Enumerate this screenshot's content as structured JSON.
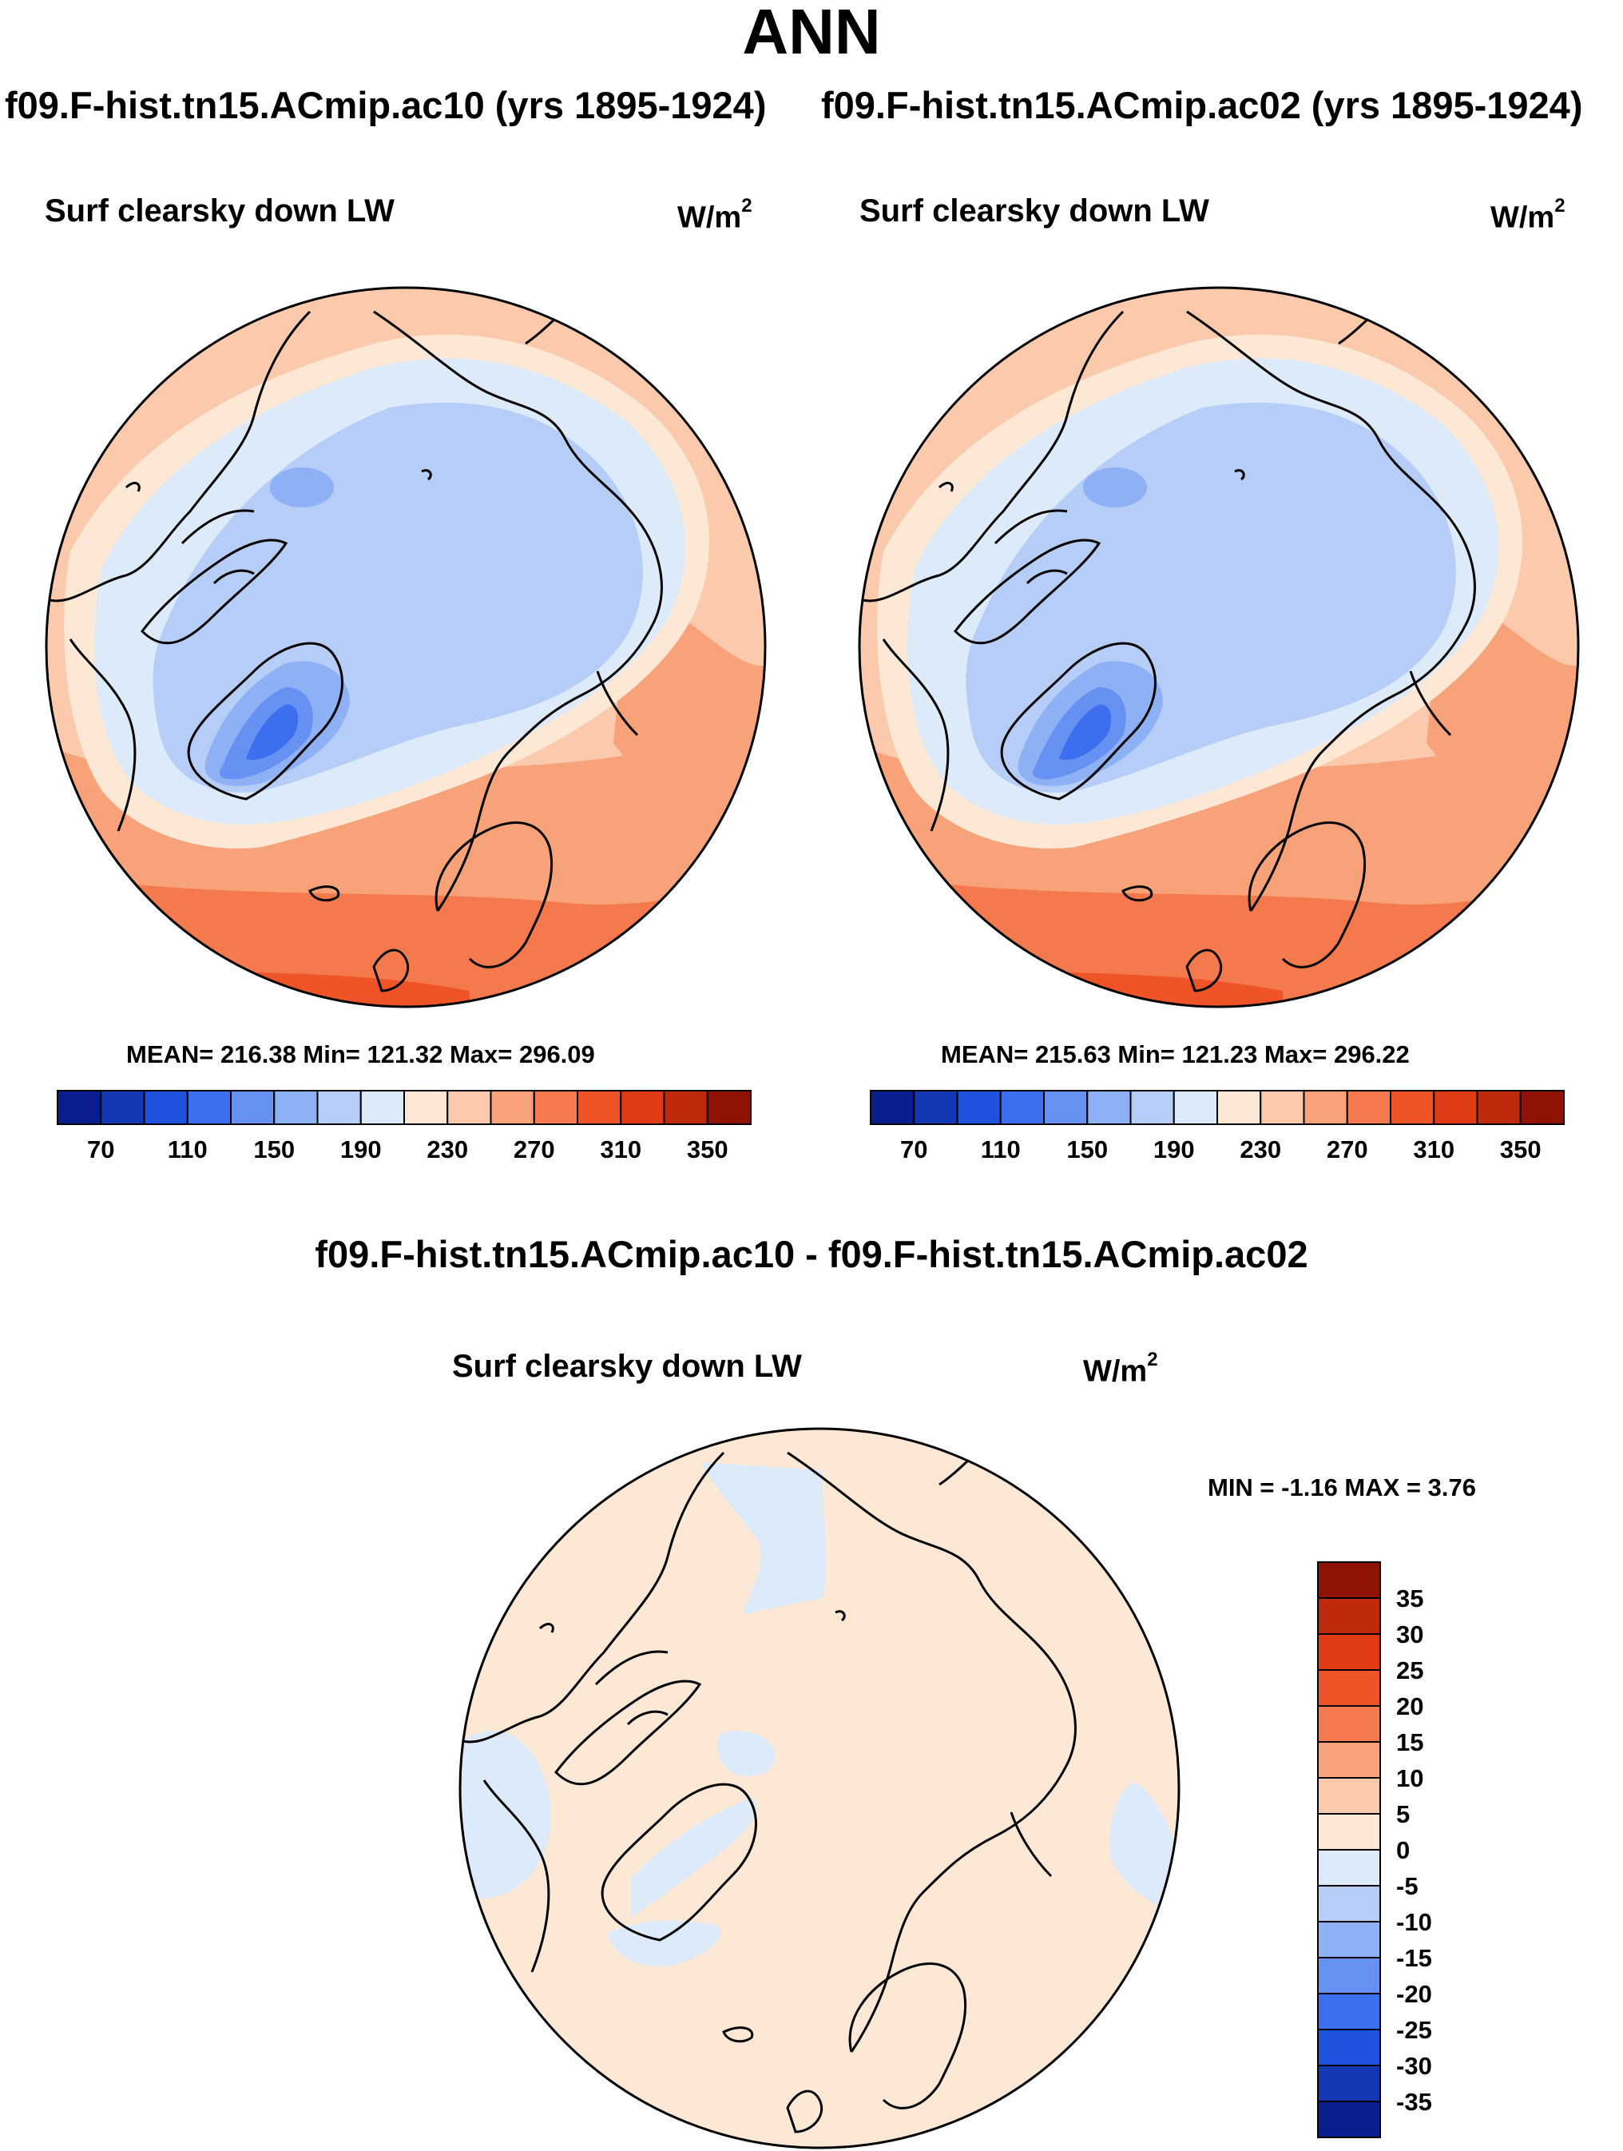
{
  "header": {
    "title": "ANN",
    "case1_title": "f09.F-hist.tn15.ACmip.ac10 (yrs 1895-1924)",
    "case2_title": "f09.F-hist.tn15.ACmip.ac02 (yrs 1895-1924)"
  },
  "panels": [
    {
      "variable": "Surf clearsky down LW",
      "units_base": "W/m",
      "units_exp": "2",
      "stats": "MEAN= 216.38  Min= 121.32  Max= 296.09"
    },
    {
      "variable": "Surf clearsky down LW",
      "units_base": "W/m",
      "units_exp": "2",
      "stats": "MEAN= 215.63  Min= 121.23  Max= 296.22"
    }
  ],
  "difference": {
    "title": "f09.F-hist.tn15.ACmip.ac10 - f09.F-hist.tn15.ACmip.ac02",
    "variable": "Surf clearsky down LW",
    "units_base": "W/m",
    "units_exp": "2",
    "stats": "MIN =  -1.16 MAX =   3.76"
  },
  "chart_data": [
    {
      "type": "heatmap",
      "projection": "north polar stereographic",
      "title": "Surf clearsky down LW",
      "units": "W/m2",
      "mean": 216.38,
      "min": 121.32,
      "max": 296.09,
      "colorbar": {
        "orientation": "horizontal",
        "levels": [
          70,
          90,
          110,
          130,
          150,
          170,
          190,
          210,
          230,
          250,
          270,
          290,
          310,
          330,
          350
        ],
        "tick_labels": [
          "70",
          "110",
          "150",
          "190",
          "230",
          "270",
          "310",
          "350"
        ],
        "colors": [
          "#0a1f8f",
          "#1438b4",
          "#1f52dc",
          "#3c6ef0",
          "#6691f2",
          "#8eb0f4",
          "#b5cdf7",
          "#dceaf9",
          "#fde8d5",
          "#fbc9ab",
          "#f8a279",
          "#f47a4e",
          "#ee5428",
          "#e03b14",
          "#c02a0c",
          "#8e1205"
        ]
      }
    },
    {
      "type": "heatmap",
      "projection": "north polar stereographic",
      "title": "Surf clearsky down LW",
      "units": "W/m2",
      "mean": 215.63,
      "min": 121.23,
      "max": 296.22,
      "colorbar": {
        "orientation": "horizontal",
        "levels": [
          70,
          90,
          110,
          130,
          150,
          170,
          190,
          210,
          230,
          250,
          270,
          290,
          310,
          330,
          350
        ],
        "tick_labels": [
          "70",
          "110",
          "150",
          "190",
          "230",
          "270",
          "310",
          "350"
        ],
        "colors": [
          "#0a1f8f",
          "#1438b4",
          "#1f52dc",
          "#3c6ef0",
          "#6691f2",
          "#8eb0f4",
          "#b5cdf7",
          "#dceaf9",
          "#fde8d5",
          "#fbc9ab",
          "#f8a279",
          "#f47a4e",
          "#ee5428",
          "#e03b14",
          "#c02a0c",
          "#8e1205"
        ]
      }
    },
    {
      "type": "heatmap",
      "projection": "north polar stereographic",
      "title": "f09.F-hist.tn15.ACmip.ac10 - f09.F-hist.tn15.ACmip.ac02",
      "units": "W/m2",
      "min": -1.16,
      "max": 3.76,
      "colorbar": {
        "orientation": "vertical",
        "levels": [
          35,
          30,
          25,
          20,
          15,
          10,
          5,
          0,
          -5,
          -10,
          -15,
          -20,
          -25,
          -30,
          -35
        ],
        "tick_labels": [
          "35",
          "30",
          "25",
          "20",
          "15",
          "10",
          "5",
          "0",
          "-5",
          "-10",
          "-15",
          "-20",
          "-25",
          "-30",
          "-35"
        ],
        "colors": [
          "#8e1205",
          "#c02a0c",
          "#e03b14",
          "#ee5428",
          "#f47a4e",
          "#f8a279",
          "#fbc9ab",
          "#fde8d5",
          "#dceaf9",
          "#b5cdf7",
          "#8eb0f4",
          "#6691f2",
          "#3c6ef0",
          "#1f52dc",
          "#1438b4",
          "#0a1f8f"
        ]
      }
    }
  ]
}
